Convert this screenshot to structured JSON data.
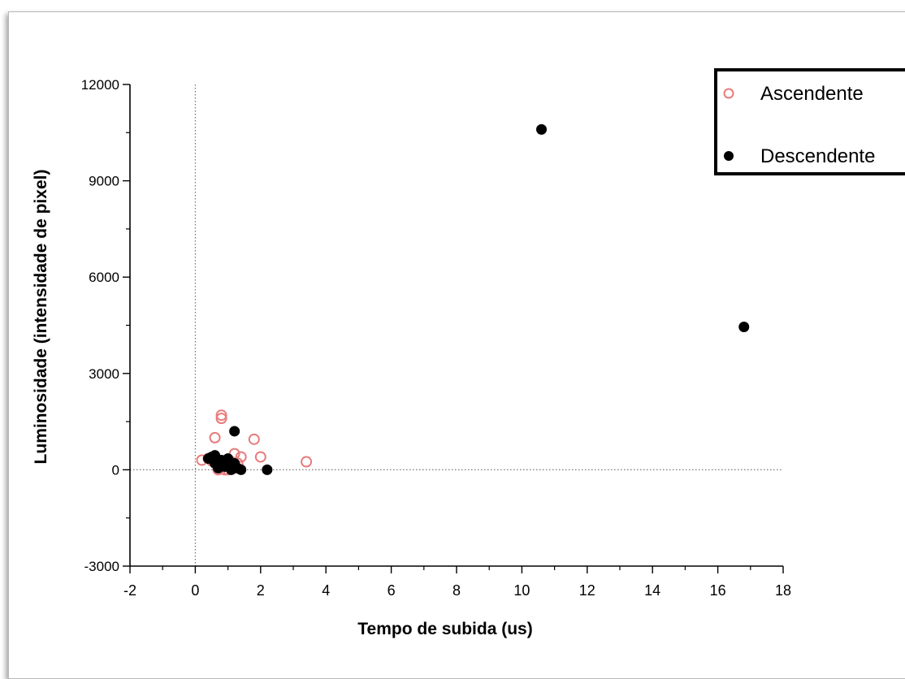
{
  "chart_data": {
    "type": "scatter",
    "title": "",
    "xlabel": "Tempo de subida (us)",
    "ylabel": "Luminosidade (intensidade de pixel)",
    "xlim": [
      -2,
      18
    ],
    "ylim": [
      -3000,
      12000
    ],
    "xticks": [
      -2,
      0,
      2,
      4,
      6,
      8,
      10,
      12,
      14,
      16,
      18
    ],
    "yticks": [
      -3000,
      0,
      3000,
      6000,
      9000,
      12000
    ],
    "xtick_labels": [
      "-2",
      "0",
      "2",
      "4",
      "6",
      "8",
      "10",
      "12",
      "14",
      "16",
      "18"
    ],
    "ytick_labels": [
      "-3000",
      "0",
      "3000",
      "6000",
      "9000",
      "12000"
    ],
    "reference_lines": {
      "x": 0,
      "y": 0,
      "style": "dotted"
    },
    "grid": false,
    "legend_position": "top-right",
    "series": [
      {
        "name": "Ascendente",
        "marker": "open-circle",
        "color": "#e87c7c",
        "points": [
          [
            0.2,
            300
          ],
          [
            0.4,
            350
          ],
          [
            0.5,
            280
          ],
          [
            0.6,
            1000
          ],
          [
            0.6,
            400
          ],
          [
            0.7,
            150
          ],
          [
            0.8,
            1700
          ],
          [
            0.8,
            1600
          ],
          [
            0.8,
            200
          ],
          [
            0.9,
            100
          ],
          [
            1.0,
            300
          ],
          [
            1.0,
            0
          ],
          [
            1.1,
            250
          ],
          [
            1.2,
            500
          ],
          [
            1.3,
            200
          ],
          [
            1.4,
            400
          ],
          [
            1.8,
            950
          ],
          [
            2.0,
            400
          ],
          [
            3.4,
            250
          ],
          [
            0.7,
            0
          ],
          [
            1.2,
            50
          ],
          [
            0.9,
            0
          ]
        ]
      },
      {
        "name": "Descendente",
        "marker": "filled-circle",
        "color": "#000000",
        "points": [
          [
            0.4,
            350
          ],
          [
            0.5,
            400
          ],
          [
            0.6,
            450
          ],
          [
            0.6,
            200
          ],
          [
            0.7,
            50
          ],
          [
            0.8,
            300
          ],
          [
            0.9,
            100
          ],
          [
            1.0,
            350
          ],
          [
            1.1,
            0
          ],
          [
            1.2,
            1200
          ],
          [
            1.2,
            200
          ],
          [
            1.3,
            50
          ],
          [
            1.4,
            0
          ],
          [
            2.2,
            0
          ],
          [
            10.6,
            10600
          ],
          [
            16.8,
            4450
          ]
        ]
      }
    ]
  },
  "legend": {
    "items": [
      {
        "label": "Ascendente",
        "marker": "open-circle",
        "color": "#e87c7c"
      },
      {
        "label": "Descendente",
        "marker": "filled-circle",
        "color": "#000000"
      }
    ]
  }
}
